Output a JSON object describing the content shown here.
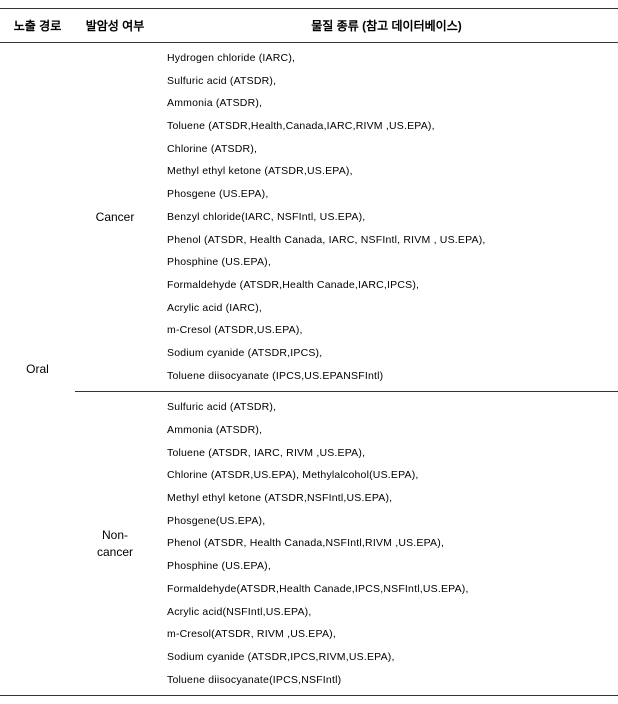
{
  "headers": {
    "route": "노출 경로",
    "carcinogenicity": "발암성 여부",
    "substance": "물질 종류 (참고 데이터베이스)"
  },
  "route": "Oral",
  "groups": [
    {
      "label": "Cancer",
      "items": [
        "Hydrogen chloride (IARC),",
        "Sulfuric acid (ATSDR),",
        "Ammonia (ATSDR),",
        "Toluene (ATSDR,Health,Canada,IARC,RIVM ,US.EPA),",
        "Chlorine (ATSDR),",
        "Methyl ethyl ketone (ATSDR,US.EPA),",
        "Phosgene (US.EPA),",
        "Benzyl chloride(IARC, NSFIntl, US.EPA),",
        "Phenol (ATSDR, Health Canada, IARC, NSFIntl, RIVM , US.EPA),",
        "Phosphine (US.EPA),",
        "Formaldehyde (ATSDR,Health Canade,IARC,IPCS),",
        "Acrylic acid (IARC),",
        "m-Cresol (ATSDR,US.EPA),",
        "Sodium cyanide (ATSDR,IPCS),",
        "Toluene diisocyanate (IPCS,US.EPANSFIntl)"
      ]
    },
    {
      "label": "Non-\ncancer",
      "items": [
        "Sulfuric acid (ATSDR),",
        "Ammonia (ATSDR),",
        "Toluene (ATSDR, IARC, RIVM ,US.EPA),",
        "Chlorine (ATSDR,US.EPA), Methylalcohol(US.EPA),",
        "Methyl ethyl ketone (ATSDR,NSFIntl,US.EPA),",
        "Phosgene(US.EPA),",
        "Phenol (ATSDR, Health Canada,NSFIntl,RIVM ,US.EPA),",
        "Phosphine (US.EPA),",
        "Formaldehyde(ATSDR,Health Canade,IPCS,NSFIntl,US.EPA),",
        "Acrylic acid(NSFIntl,US.EPA),",
        "m-Cresol(ATSDR, RIVM ,US.EPA),",
        "Sodium cyanide (ATSDR,IPCS,RIVM,US.EPA),",
        "Toluene diisocyanate(IPCS,NSFIntl)"
      ]
    }
  ]
}
